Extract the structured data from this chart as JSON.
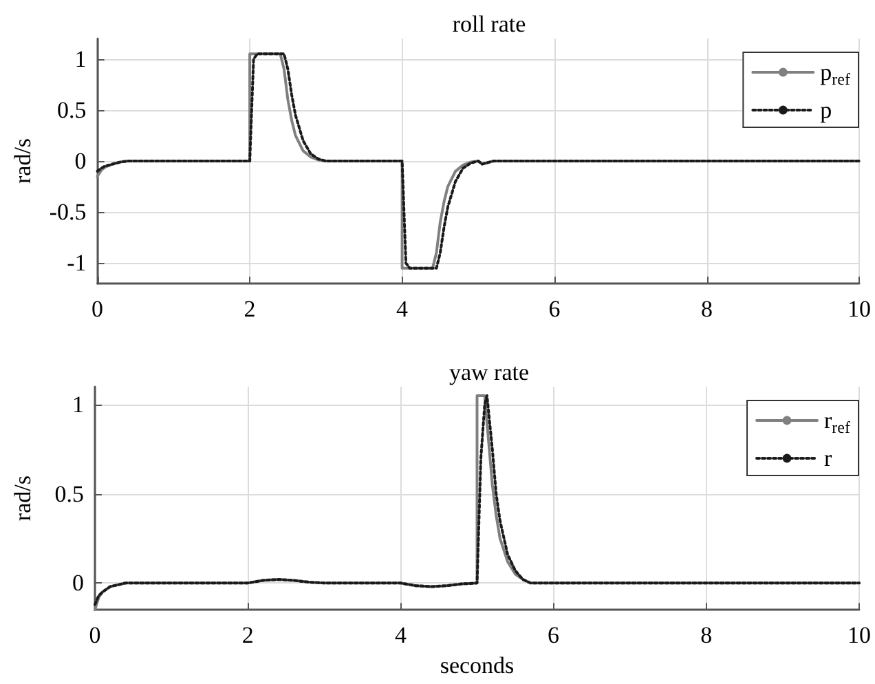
{
  "chart_data": [
    {
      "type": "line",
      "title": "roll rate",
      "ylabel": "rad/s",
      "xlim": [
        0,
        10
      ],
      "xticks": [
        0,
        2,
        4,
        6,
        8,
        10
      ],
      "ylim": [
        -1.2,
        1.2
      ],
      "yticks": [
        -1,
        -0.5,
        0,
        0.5,
        1
      ],
      "grid": true,
      "legend": "top right",
      "marker": "none",
      "series": [
        {
          "name": "p$_{ref}$",
          "color": "#808080",
          "line_style": "solid",
          "x": [
            0,
            0.05,
            0.1,
            0.2,
            0.3,
            0.4,
            0.6,
            2,
            2,
            2.4,
            2.45,
            2.5,
            2.55,
            2.6,
            2.7,
            2.8,
            2.9,
            3.0,
            4,
            4,
            4.4,
            4.45,
            4.5,
            4.55,
            4.6,
            4.7,
            4.8,
            4.9,
            5.0,
            5.05,
            5.1,
            5.2,
            10
          ],
          "values": [
            -0.15,
            -0.09,
            -0.06,
            -0.03,
            -0.01,
            0,
            0,
            0,
            1.05,
            1.05,
            0.9,
            0.6,
            0.4,
            0.25,
            0.1,
            0.04,
            0.01,
            0,
            0,
            -1.05,
            -1.05,
            -0.9,
            -0.6,
            -0.4,
            -0.25,
            -0.1,
            -0.04,
            -0.01,
            0,
            -0.03,
            -0.02,
            0,
            0
          ]
        },
        {
          "name": "p",
          "color": "#1a1a1a",
          "line_style": "dotted",
          "x": [
            0,
            0.05,
            0.1,
            0.2,
            0.3,
            0.4,
            0.6,
            2,
            2.05,
            2.1,
            2.45,
            2.5,
            2.55,
            2.6,
            2.7,
            2.8,
            2.9,
            3.0,
            4,
            4.05,
            4.1,
            4.45,
            4.5,
            4.55,
            4.6,
            4.7,
            4.8,
            4.9,
            5.0,
            5.05,
            5.1,
            5.2,
            10
          ],
          "values": [
            -0.1,
            -0.07,
            -0.05,
            -0.03,
            -0.01,
            0,
            0,
            0,
            1.0,
            1.05,
            1.05,
            0.9,
            0.65,
            0.45,
            0.2,
            0.07,
            0.02,
            0,
            0,
            -1.0,
            -1.05,
            -1.05,
            -0.9,
            -0.65,
            -0.45,
            -0.2,
            -0.07,
            -0.02,
            0,
            -0.03,
            -0.02,
            0,
            0
          ]
        }
      ]
    },
    {
      "type": "line",
      "title": "yaw rate",
      "xlabel": "seconds",
      "ylabel": "rad/s",
      "xlim": [
        0,
        10
      ],
      "xticks": [
        0,
        2,
        4,
        6,
        8,
        10
      ],
      "ylim": [
        -0.15,
        1.1
      ],
      "yticks": [
        0,
        0.5,
        1
      ],
      "grid": true,
      "legend": "top right",
      "marker": "none",
      "series": [
        {
          "name": "r$_{ref}$",
          "color": "#808080",
          "line_style": "solid",
          "x": [
            0,
            0.05,
            0.1,
            0.2,
            0.3,
            0.4,
            2,
            2.2,
            2.4,
            2.6,
            2.8,
            3,
            4,
            4.2,
            4.4,
            4.6,
            4.8,
            5,
            5,
            5.1,
            5.15,
            5.2,
            5.25,
            5.3,
            5.4,
            5.5,
            5.6,
            5.7,
            10
          ],
          "values": [
            -0.15,
            -0.08,
            -0.05,
            -0.02,
            -0.01,
            0,
            0,
            0.015,
            0.02,
            0.015,
            0.005,
            0,
            0,
            -0.015,
            -0.02,
            -0.015,
            -0.005,
            0,
            1.05,
            1.05,
            0.8,
            0.55,
            0.38,
            0.25,
            0.12,
            0.05,
            0.02,
            0,
            0
          ]
        },
        {
          "name": "r",
          "color": "#1a1a1a",
          "line_style": "dotted",
          "x": [
            0,
            0.05,
            0.1,
            0.2,
            0.3,
            0.4,
            2,
            2.2,
            2.4,
            2.6,
            2.8,
            3,
            4,
            4.2,
            4.4,
            4.6,
            4.8,
            5,
            5.05,
            5.1,
            5.13,
            5.2,
            5.25,
            5.3,
            5.4,
            5.5,
            5.6,
            5.7,
            10
          ],
          "values": [
            -0.12,
            -0.07,
            -0.05,
            -0.02,
            -0.01,
            0,
            0,
            0.015,
            0.02,
            0.015,
            0.005,
            0,
            0,
            -0.015,
            -0.02,
            -0.015,
            -0.005,
            0,
            0.7,
            1.0,
            1.05,
            0.75,
            0.5,
            0.35,
            0.16,
            0.07,
            0.02,
            0,
            0
          ]
        }
      ]
    }
  ]
}
